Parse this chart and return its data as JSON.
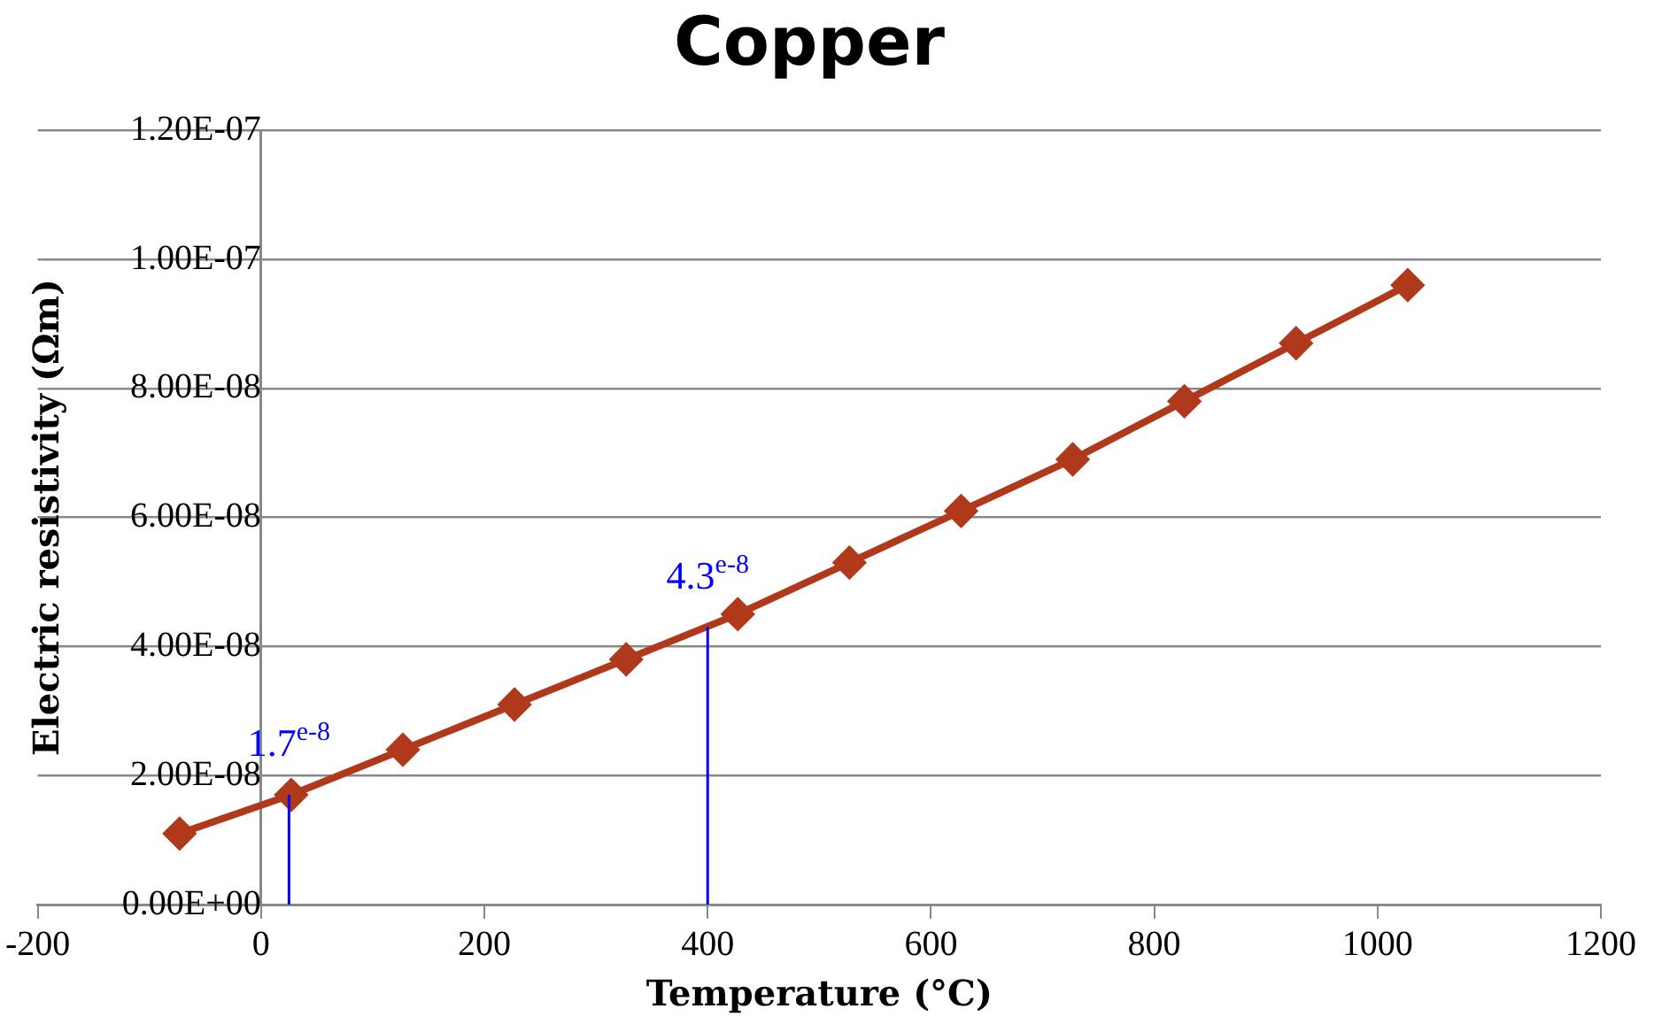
{
  "chart_data": {
    "type": "line",
    "title": "Copper",
    "xlabel": "Temperature (°C)",
    "ylabel": "Electric resistivity (Ωm)",
    "x": [
      -73,
      27,
      127,
      227,
      327,
      427,
      527,
      627,
      727,
      827,
      927,
      1027
    ],
    "series": [
      {
        "color": "#b0391c",
        "values": [
          1.1e-08,
          1.7e-08,
          2.4e-08,
          3.1e-08,
          3.8e-08,
          4.5e-08,
          5.3e-08,
          6.1e-08,
          6.9e-08,
          7.8e-08,
          8.7e-08,
          9.6e-08
        ]
      }
    ],
    "xlim": [
      -200,
      1200
    ],
    "xticks": [
      -200,
      0,
      200,
      400,
      600,
      800,
      1000,
      1200
    ],
    "ylim": [
      0,
      1.2e-07
    ],
    "yticks": [
      {
        "value": 0,
        "label": "0.00E+00"
      },
      {
        "value": 2e-08,
        "label": "2.00E-08"
      },
      {
        "value": 4e-08,
        "label": "4.00E-08"
      },
      {
        "value": 6e-08,
        "label": "6.00E-08"
      },
      {
        "value": 8e-08,
        "label": "8.00E-08"
      },
      {
        "value": 1e-07,
        "label": "1.00E-07"
      },
      {
        "value": 1.2e-07,
        "label": "1.20E-07"
      }
    ],
    "annotations": [
      {
        "text": "1.7$^{e-8}$",
        "x": 25,
        "y": 1.7e-08
      },
      {
        "text": "4.3$^{e-8}$",
        "x": 400,
        "y": 4.3e-08
      }
    ],
    "grid": "y",
    "legend": false,
    "marker": "diamond",
    "line_style": "solid"
  }
}
